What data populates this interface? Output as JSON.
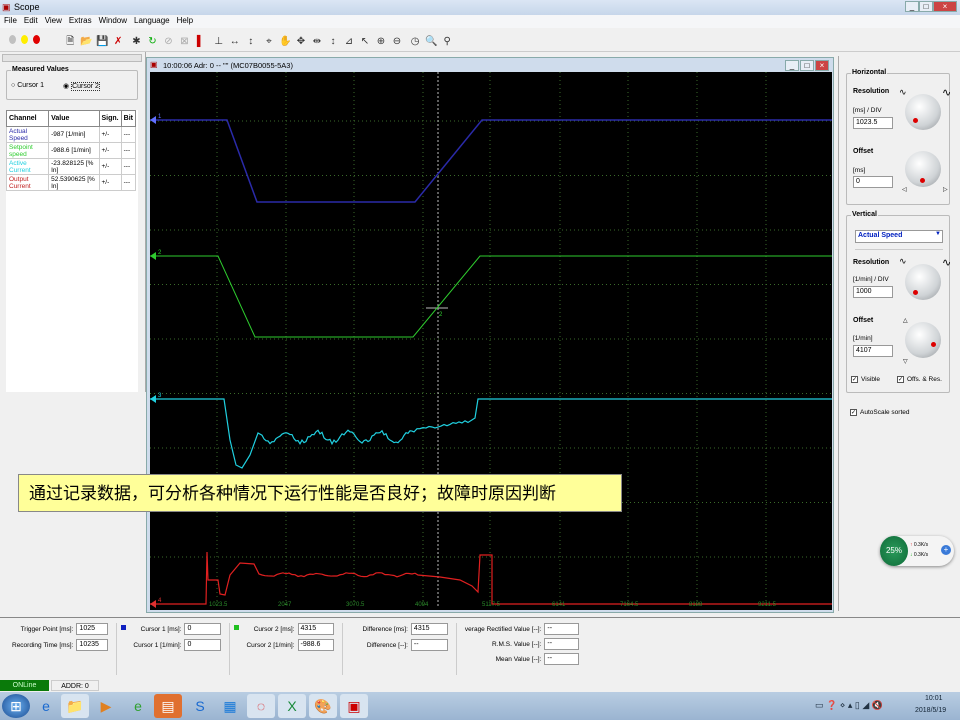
{
  "window": {
    "title": "Scope",
    "controls": [
      "_",
      "□",
      "×"
    ]
  },
  "menu": [
    "File",
    "Edit",
    "View",
    "Extras",
    "Window",
    "Language",
    "Help"
  ],
  "toolbar": {
    "leds": [
      "#c0c0c0",
      "#ffee00",
      "#e00000"
    ],
    "icons": [
      "new-icon",
      "open-icon",
      "save-icon",
      "delete-icon",
      "bug-icon",
      "refresh-icon",
      "disconnect-icon",
      "cancel-icon",
      "marker-icon",
      "trigger-icon",
      "hstretch-icon",
      "vstretch-icon",
      "crosshair-icon",
      "hand-icon",
      "move-icon",
      "move-h-icon",
      "move-v-icon",
      "measure-icon",
      "measure2-icon",
      "zoom-in-icon",
      "zoom-out-icon",
      "clock-icon",
      "search-icon",
      "person-icon"
    ]
  },
  "measured": {
    "title": "Measured Values",
    "cursor1": "Cursor 1",
    "cursor2": "Cursor 2",
    "selected": "Cursor 2",
    "headers": [
      "Channel",
      "Value",
      "Sign.",
      "Bit"
    ],
    "rows": [
      {
        "channel": "Actual Speed",
        "value": "-987 [1/min]",
        "sign": "+/-",
        "bit": "---",
        "color": "#2a2aa8"
      },
      {
        "channel": "Setpoint speed",
        "value": "-988.6 [1/min]",
        "sign": "+/-",
        "bit": "---",
        "color": "#2ecc2e"
      },
      {
        "channel": "Active Current",
        "value": "-23.828125 [% In]",
        "sign": "+/-",
        "bit": "---",
        "color": "#20d0e0"
      },
      {
        "channel": "Output Current",
        "value": "52.5390625 [% In]",
        "sign": "+/-",
        "bit": "---",
        "color": "#c02020"
      }
    ]
  },
  "scope": {
    "caption": "10:00:06 Adr: 0 --  \"\"  (MC07B0055-5A3)",
    "channel_markers": [
      "1",
      "2",
      "3",
      "4"
    ],
    "cursor_label": "2",
    "x_ticks": [
      "1023.5",
      "2047",
      "3070.5",
      "4094",
      "5117.5",
      "6141",
      "7164.5",
      "8188",
      "9211.5"
    ]
  },
  "banner": "通过记录数据，可分析各种情况下运行性能是否良好；故障时原因判断",
  "horizontal": {
    "title": "Horizontal",
    "resolution_label": "Resolution",
    "res_unit": "[ms] / DIV",
    "res_value": "1023.5",
    "offset_label": "Offset",
    "off_unit": "[ms]",
    "off_value": "0"
  },
  "vertical": {
    "title": "Vertical",
    "channel": "Actual Speed",
    "resolution_label": "Resolution",
    "res_unit": "[1/min] / DIV",
    "res_value": "1000",
    "offset_label": "Offset",
    "off_unit": "[1/min]",
    "off_value": "4107",
    "visible": "Visible",
    "offs_res": "Offs. & Res."
  },
  "autoscale": "AutoScale sorted",
  "network": {
    "cpu": "25%",
    "up": "0.3K/s",
    "down": "0.3K/s"
  },
  "bottom": {
    "trigger_label": "Trigger Point [ms]:",
    "trigger": "1025",
    "rec_label": "Recording Time [ms]:",
    "rec": "10235",
    "c1ms_label": "Cursor 1 [ms]:",
    "c1ms": "0",
    "c1rpm_label": "Cursor 1 [1/min]:",
    "c1rpm": "0",
    "c2ms_label": "Cursor 2 [ms]:",
    "c2ms": "4315",
    "c2rpm_label": "Cursor 2 [1/min]:",
    "c2rpm": "-988.6",
    "diffms_label": "Difference [ms]:",
    "diffms": "4315",
    "diff_label": "Difference [--]:",
    "diff": "--",
    "arv_label": "verage Rectified Value [--]:",
    "arv": "--",
    "rms_label": "R.M.S. Value [--]:",
    "rms": "--",
    "mean_label": "Mean Value [--]:",
    "mean": "--"
  },
  "status": {
    "online": "ONLine",
    "addr": "ADDR: 0"
  },
  "tray": {
    "time": "10:01",
    "date": "2018/5/19"
  }
}
